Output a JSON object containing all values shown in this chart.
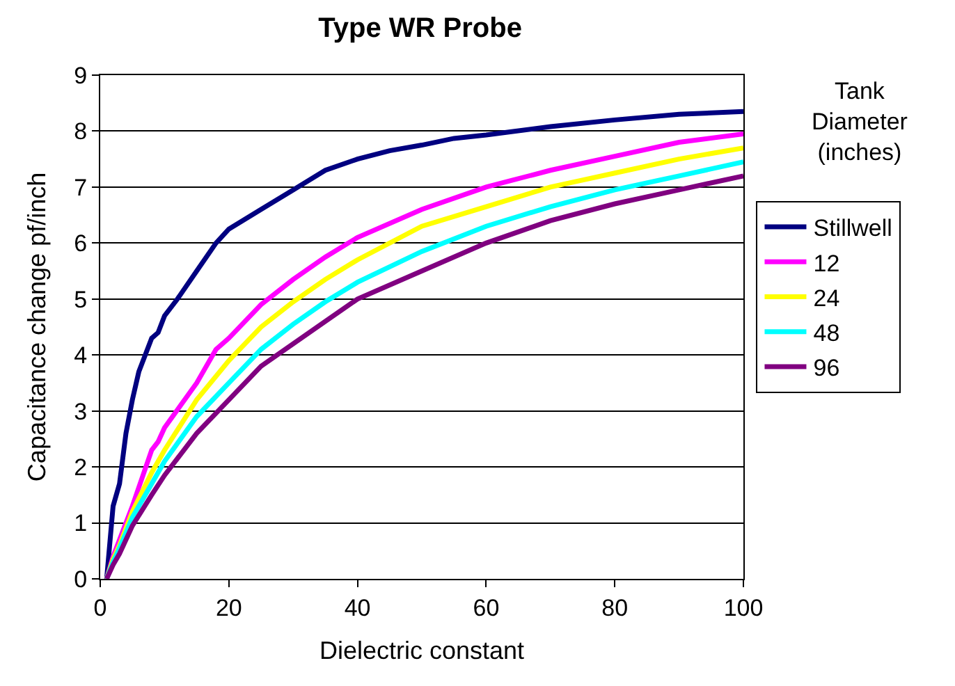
{
  "chart_data": {
    "type": "line",
    "title": "Type WR Probe",
    "xlabel": "Dielectric constant",
    "ylabel": "Capacitance change pf/inch",
    "legend_title": "Tank Diameter (inches)",
    "legend": "right",
    "grid": "y",
    "marker": "none",
    "line_style": "solid",
    "xlim": [
      0,
      100
    ],
    "xticks": [
      0,
      20,
      40,
      60,
      80,
      100
    ],
    "ylim": [
      0,
      9
    ],
    "yticks": [
      0,
      1,
      2,
      3,
      4,
      5,
      6,
      7,
      8,
      9
    ],
    "series": [
      {
        "name": "Stillwell",
        "color": "#000080",
        "x": [
          1,
          2,
          3,
          4,
          5,
          6,
          8,
          9,
          10,
          12,
          15,
          18,
          20,
          25,
          30,
          35,
          40,
          45,
          50,
          55,
          60,
          70,
          80,
          90,
          100
        ],
        "values": [
          0,
          1.3,
          1.7,
          2.6,
          3.2,
          3.7,
          4.3,
          4.4,
          4.7,
          5.0,
          5.5,
          6.0,
          6.25,
          6.6,
          6.95,
          7.3,
          7.5,
          7.65,
          7.75,
          7.87,
          7.93,
          8.08,
          8.2,
          8.3,
          8.35
        ]
      },
      {
        "name": "12",
        "color": "#ff00ff",
        "x": [
          1,
          2,
          3,
          5,
          8,
          9,
          10,
          15,
          18,
          20,
          25,
          30,
          35,
          40,
          50,
          60,
          70,
          80,
          90,
          100
        ],
        "values": [
          0,
          0.4,
          0.7,
          1.3,
          2.3,
          2.45,
          2.7,
          3.5,
          4.1,
          4.3,
          4.9,
          5.35,
          5.75,
          6.1,
          6.6,
          7.0,
          7.3,
          7.55,
          7.8,
          7.95
        ]
      },
      {
        "name": "24",
        "color": "#ffff00",
        "x": [
          1,
          2,
          3,
          5,
          8,
          10,
          15,
          20,
          25,
          30,
          35,
          40,
          50,
          60,
          70,
          80,
          90,
          100
        ],
        "values": [
          0,
          0.35,
          0.6,
          1.2,
          1.9,
          2.3,
          3.2,
          3.9,
          4.5,
          4.95,
          5.35,
          5.7,
          6.3,
          6.65,
          7.0,
          7.25,
          7.5,
          7.7
        ]
      },
      {
        "name": "48",
        "color": "#00ffff",
        "x": [
          1,
          2,
          3,
          5,
          8,
          10,
          15,
          20,
          25,
          30,
          35,
          40,
          50,
          60,
          70,
          80,
          90,
          100
        ],
        "values": [
          0,
          0.3,
          0.55,
          1.1,
          1.7,
          2.1,
          2.9,
          3.5,
          4.1,
          4.55,
          4.95,
          5.3,
          5.85,
          6.3,
          6.65,
          6.95,
          7.2,
          7.45
        ]
      },
      {
        "name": "96",
        "color": "#800080",
        "x": [
          1,
          2,
          3,
          5,
          8,
          10,
          15,
          20,
          25,
          30,
          35,
          40,
          50,
          60,
          70,
          80,
          90,
          100
        ],
        "values": [
          0,
          0.25,
          0.45,
          0.95,
          1.5,
          1.85,
          2.6,
          3.2,
          3.8,
          4.2,
          4.6,
          5.0,
          5.5,
          6.0,
          6.4,
          6.7,
          6.95,
          7.2
        ]
      }
    ]
  }
}
